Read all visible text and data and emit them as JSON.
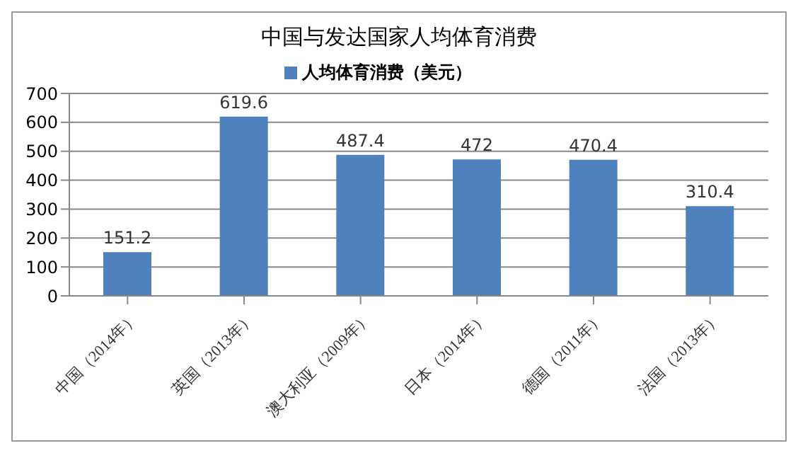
{
  "chart_data": {
    "type": "bar",
    "title": "中国与发达国家人均体育消费",
    "categories": [
      "中国（2014年）",
      "英国（2013年）",
      "澳大利亚（2009年）",
      "日本（2014年）",
      "德国（2011年）",
      "法国（2013年）"
    ],
    "series": [
      {
        "name": "人均体育消费（美元）",
        "color": "#4f81bd",
        "values": [
          151.2,
          619.6,
          487.4,
          472,
          470.4,
          310.4
        ]
      }
    ],
    "ylim": [
      0,
      700
    ],
    "yticks": [
      0,
      100,
      200,
      300,
      400,
      500,
      600,
      700
    ],
    "grid": "y",
    "legend": "top",
    "data_labels": true
  }
}
